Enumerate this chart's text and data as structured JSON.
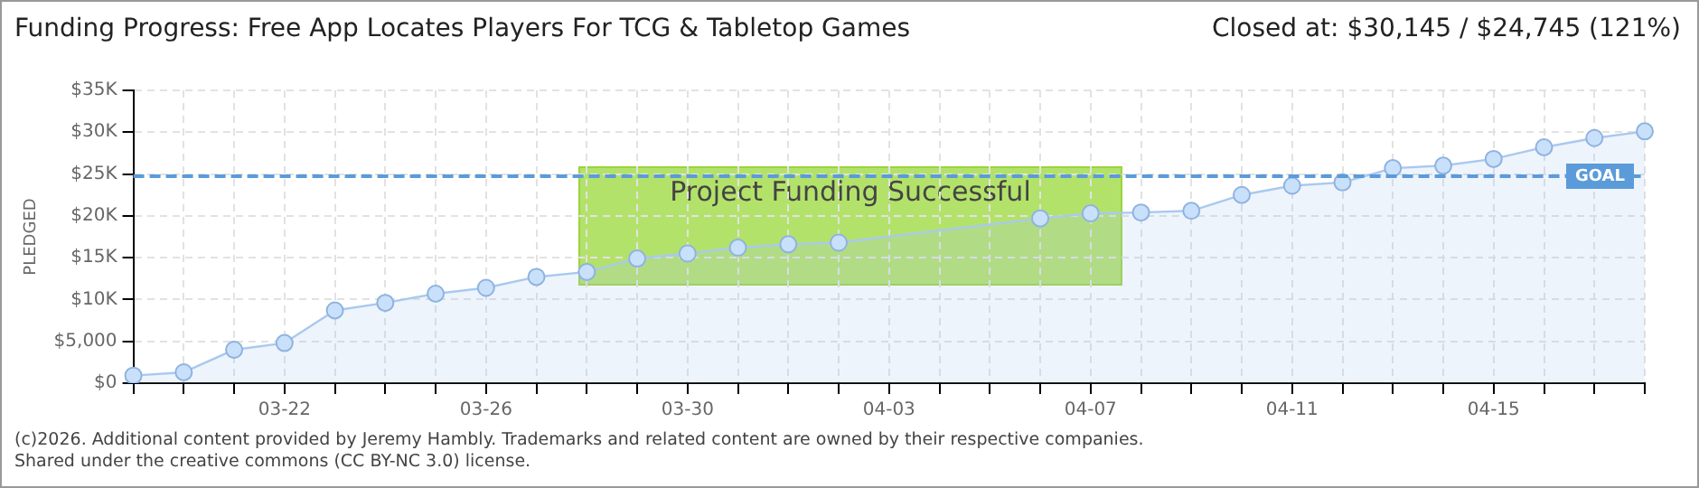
{
  "chart_data": {
    "type": "area",
    "title": "Funding Progress: Free App Locates Players For TCG & Tabletop Games",
    "subtitle": "Closed at: $30,145 / $24,745 (121%)",
    "ylabel": "PLEDGED",
    "categories": [
      null,
      null,
      null,
      "03-22",
      null,
      null,
      null,
      "03-26",
      null,
      null,
      null,
      "03-30",
      null,
      null,
      null,
      "04-03",
      null,
      null,
      null,
      "04-07",
      null,
      null,
      null,
      "04-11",
      null,
      null,
      null,
      "04-15",
      null,
      null,
      null
    ],
    "series": [
      {
        "color": "#a9c9ee",
        "values": [
          900,
          1300,
          4000,
          4800,
          8700,
          9600,
          10700,
          11400,
          12700,
          13300,
          14900,
          15500,
          16200,
          16600,
          16800,
          null,
          null,
          null,
          19700,
          20300,
          20400,
          20600,
          22500,
          23600,
          24000,
          25700,
          26000,
          26800,
          28200,
          29300,
          30100
        ]
      }
    ],
    "ylim": [
      0,
      35000
    ],
    "yticks": [
      {
        "value": 0,
        "label": "$0"
      },
      {
        "value": 5000,
        "label": "$5,000"
      },
      {
        "value": 10000,
        "label": "$10K"
      },
      {
        "value": 15000,
        "label": "$15K"
      },
      {
        "value": 20000,
        "label": "$20K"
      },
      {
        "value": 25000,
        "label": "$25K"
      },
      {
        "value": 30000,
        "label": "$30K"
      },
      {
        "value": 35000,
        "label": "$35K"
      }
    ],
    "ref_lines": [
      {
        "axis": "y",
        "value": 24745,
        "label": "GOAL",
        "color": "#5b9bd9",
        "line_style": "dashed"
      }
    ],
    "annotations": [
      "Project Funding Successful",
      "(c)2026. Additional content provided by Jeremy Hambly. Trademarks and related content are owned by their respective companies.",
      "Shared under the creative commons (CC BY-NC 3.0) license."
    ],
    "grid": true,
    "legend": false,
    "marker": "circle",
    "line_style": "solid"
  }
}
